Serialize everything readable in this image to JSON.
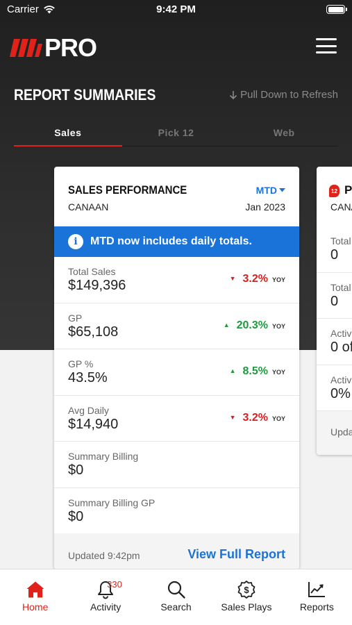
{
  "status_bar": {
    "carrier": "Carrier",
    "time": "9:42 PM"
  },
  "header": {
    "logo_text": "PRO"
  },
  "page": {
    "title": "REPORT SUMMARIES",
    "refresh_hint": "Pull Down to Refresh"
  },
  "tabs": [
    {
      "label": "Sales",
      "active": true
    },
    {
      "label": "Pick 12",
      "active": false
    },
    {
      "label": "Web",
      "active": false
    }
  ],
  "card": {
    "title": "SALES PERFORMANCE",
    "location": "CANAAN",
    "period": "MTD",
    "date": "Jan 2023",
    "banner": "MTD now includes daily totals.",
    "metrics": [
      {
        "label": "Total Sales",
        "value": "$149,396",
        "change": "3.2%",
        "direction": "down",
        "suffix": "YOY"
      },
      {
        "label": "GP",
        "value": "$65,108",
        "change": "20.3%",
        "direction": "up",
        "suffix": "YOY"
      },
      {
        "label": "GP %",
        "value": "43.5%",
        "change": "8.5%",
        "direction": "up",
        "suffix": "YOY"
      },
      {
        "label": "Avg Daily",
        "value": "$14,940",
        "change": "3.2%",
        "direction": "down",
        "suffix": "YOY"
      },
      {
        "label": "Summary Billing",
        "value": "$0"
      },
      {
        "label": "Summary Billing GP",
        "value": "$0"
      }
    ],
    "updated": "Updated 9:42pm",
    "view_report": "View Full Report"
  },
  "peek_card": {
    "badge": "12",
    "title": "PI",
    "location": "CANA",
    "rows": [
      {
        "label": "Total",
        "value": "0"
      },
      {
        "label": "Total",
        "value": "0"
      },
      {
        "label": "Activ",
        "value": "0 of"
      },
      {
        "label": "Activ",
        "value": "0%"
      }
    ],
    "updated": "Upda"
  },
  "bottom_nav": [
    {
      "label": "Home",
      "icon": "home-icon",
      "active": true
    },
    {
      "label": "Activity",
      "icon": "bell-icon",
      "badge": "330"
    },
    {
      "label": "Search",
      "icon": "search-icon"
    },
    {
      "label": "Sales Plays",
      "icon": "dollar-badge-icon"
    },
    {
      "label": "Reports",
      "icon": "chart-icon"
    }
  ],
  "colors": {
    "accent_red": "#e0231a",
    "accent_blue": "#1a73d9",
    "up_green": "#1e9a3e",
    "down_red": "#d71f1f"
  }
}
